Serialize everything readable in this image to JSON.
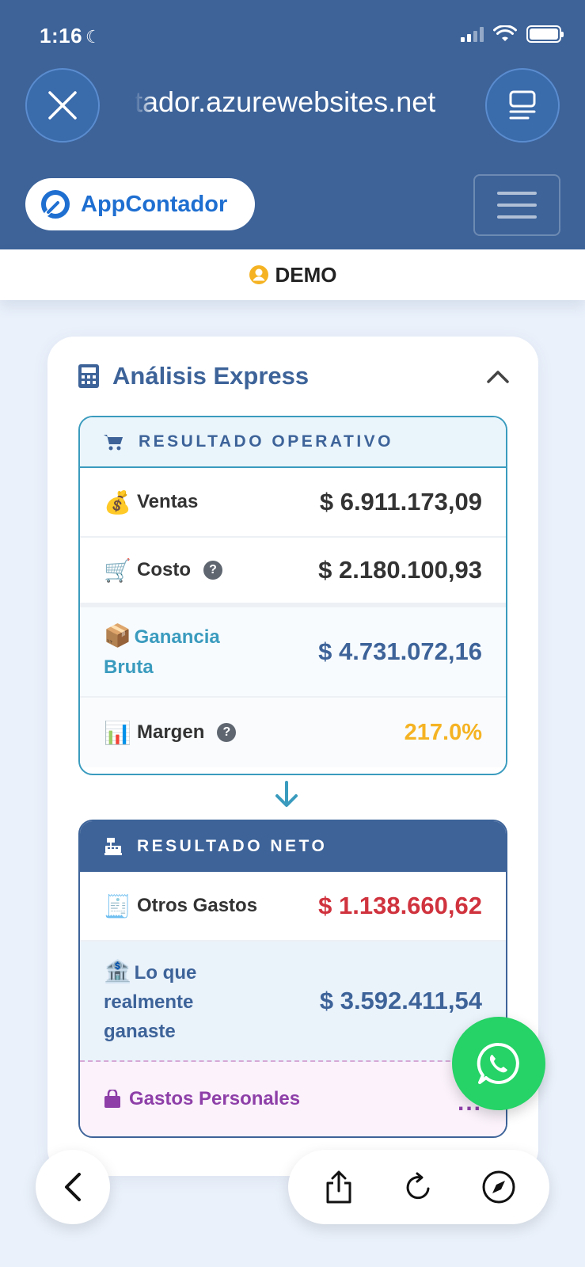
{
  "status_bar": {
    "time": "1:16"
  },
  "browser": {
    "url": "tador.azurewebsites.net"
  },
  "brand": {
    "name": "AppContador",
    "color": "#1f6fd1"
  },
  "demo": {
    "label": "DEMO"
  },
  "card": {
    "title": "Análisis Express",
    "operativo": {
      "heading": "RESULTADO OPERATIVO",
      "rows": {
        "ventas": {
          "emoji": "💰",
          "label": "Ventas",
          "value": "$ 6.911.173,09"
        },
        "costo": {
          "emoji": "🛒",
          "label": "Costo",
          "value": "$ 2.180.100,93"
        },
        "ganancia": {
          "emoji": "📦",
          "label": "Ganancia Bruta",
          "value": "$ 4.731.072,16"
        },
        "margen": {
          "emoji": "📊",
          "label": "Margen",
          "value": "217.0%"
        }
      }
    },
    "neto": {
      "heading": "RESULTADO NETO",
      "rows": {
        "otros": {
          "emoji": "🧾",
          "label": "Otros Gastos",
          "value": "$ 1.138.660,62"
        },
        "ganaste": {
          "emoji": "🏦",
          "label": "Lo que realmente ganaste",
          "value": "$ 3.592.411,54"
        },
        "personal": {
          "label": "Gastos Personales",
          "more": "..."
        }
      }
    }
  },
  "colors": {
    "header_bg": "#3d6399",
    "accent_teal": "#3a9bbe",
    "negative": "#d0333e",
    "margin": "#f5b323",
    "personal": "#8e3fa8",
    "whatsapp": "#25d366"
  },
  "icons": [
    "close-icon",
    "reader-icon",
    "menu-icon",
    "user-icon",
    "calculator-icon",
    "chevron-up-icon",
    "cart-icon",
    "arrow-down-icon",
    "cash-register-icon",
    "bag-icon",
    "whatsapp-icon",
    "back-icon",
    "share-icon",
    "reload-icon",
    "compass-icon"
  ]
}
